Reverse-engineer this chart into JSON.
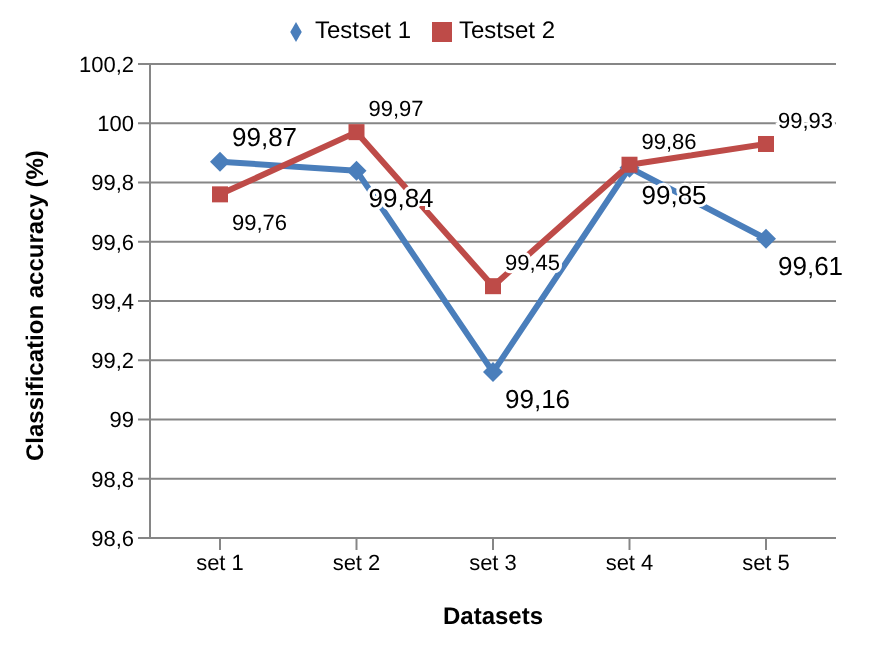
{
  "chart_data": {
    "type": "line",
    "xlabel": "Datasets",
    "ylabel": "Classification accuracy (%)",
    "categories": [
      "set 1",
      "set 2",
      "set 3",
      "set 4",
      "set 5"
    ],
    "series": [
      {
        "name": "Testset 1",
        "color": "#4a7ebb",
        "marker": "diamond",
        "values": [
          99.87,
          99.84,
          99.16,
          99.85,
          99.61
        ],
        "value_labels": [
          "99,87",
          "99,84",
          "99,16",
          "99,85",
          "99,61"
        ]
      },
      {
        "name": "Testset 2",
        "color": "#be4b48",
        "marker": "square",
        "values": [
          99.76,
          99.97,
          99.45,
          99.86,
          99.93
        ],
        "value_labels": [
          "99,76",
          "99,97",
          "99,45",
          "99,86",
          "99,93"
        ]
      }
    ],
    "ylim": [
      98.6,
      100.2
    ],
    "yticks": [
      {
        "value": 98.6,
        "label": "98,6"
      },
      {
        "value": 98.8,
        "label": "98,8"
      },
      99,
      {
        "value": 99.2,
        "label": "99,2"
      },
      {
        "value": 99.4,
        "label": "99,4"
      },
      {
        "value": 99.6,
        "label": "99,6"
      },
      {
        "value": 99.8,
        "label": "99,8"
      },
      100,
      {
        "value": 100.2,
        "label": "100,2"
      }
    ],
    "grid": "y",
    "legend": "top",
    "line_style": "solid"
  }
}
